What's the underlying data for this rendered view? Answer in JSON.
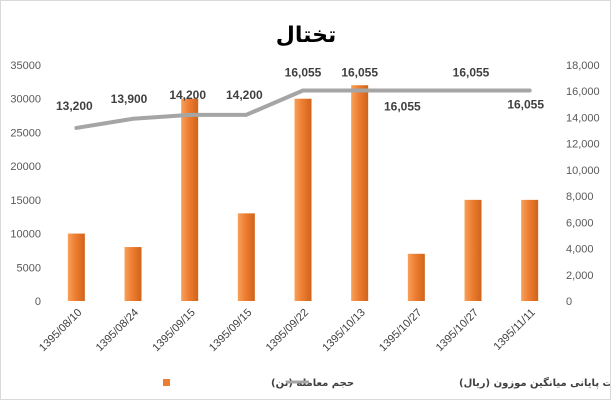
{
  "chart_data": {
    "type": "bar+line",
    "title": "تختال",
    "categories": [
      "1395/08/10",
      "1395/08/24",
      "1395/09/15",
      "1395/09/15",
      "1395/09/22",
      "1395/10/13",
      "1395/10/27",
      "1395/10/27",
      "1395/11/11"
    ],
    "series": [
      {
        "name": "حجم معامله (تن)",
        "type": "bar",
        "axis": "left",
        "color": "#ED7D31",
        "values": [
          10000,
          8000,
          30000,
          13000,
          30000,
          32000,
          7000,
          15000,
          15000
        ]
      },
      {
        "name": "قیمت پایانی میانگین موزون (ریال)",
        "type": "line",
        "axis": "right",
        "color": "#A5A5A5",
        "values": [
          13200,
          13900,
          14200,
          14200,
          16055,
          16055,
          16055,
          16055,
          16055
        ],
        "data_labels": [
          "13,200",
          "13,900",
          "14,200",
          "14,200",
          "16,055",
          "16,055",
          "16,055",
          "16,055",
          "16,055"
        ]
      }
    ],
    "y_left": {
      "min": 0,
      "max": 35000,
      "step": 5000,
      "ticks": [
        "0",
        "5000",
        "10000",
        "15000",
        "20000",
        "25000",
        "30000",
        "35000"
      ]
    },
    "y_right": {
      "min": 0,
      "max": 18000,
      "step": 2000,
      "ticks": [
        "0",
        "2,000",
        "4,000",
        "6,000",
        "8,000",
        "10,000",
        "12,000",
        "14,000",
        "16,000",
        "18,000"
      ]
    },
    "grid": false,
    "legend_position": "bottom"
  }
}
